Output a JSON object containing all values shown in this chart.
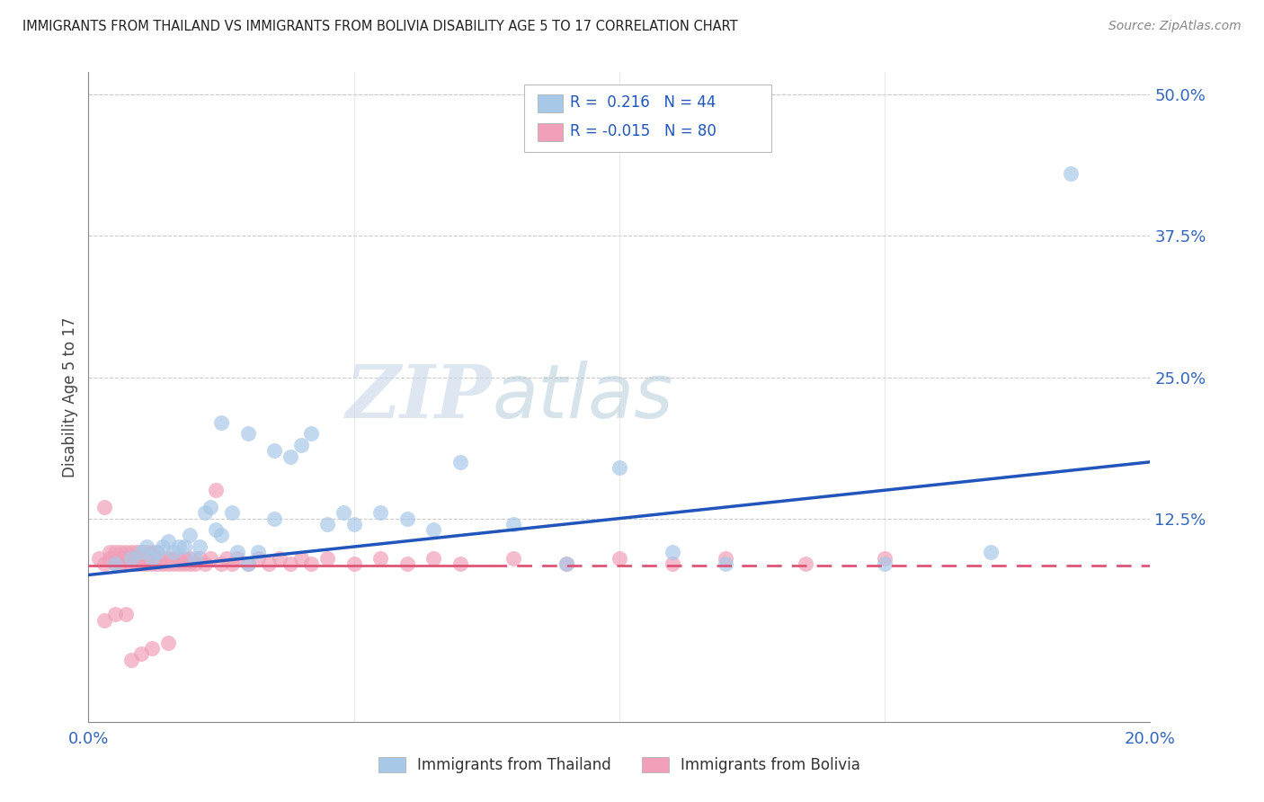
{
  "title": "IMMIGRANTS FROM THAILAND VS IMMIGRANTS FROM BOLIVIA DISABILITY AGE 5 TO 17 CORRELATION CHART",
  "source": "Source: ZipAtlas.com",
  "ylabel": "Disability Age 5 to 17",
  "xlim": [
    0.0,
    0.2
  ],
  "ylim": [
    -0.055,
    0.52
  ],
  "thailand_R": 0.216,
  "thailand_N": 44,
  "bolivia_R": -0.015,
  "bolivia_N": 80,
  "thailand_color": "#a8c8e8",
  "bolivia_color": "#f0a0b8",
  "thailand_line_color": "#2255bb",
  "bolivia_line_color": "#dd5577",
  "background_color": "#ffffff",
  "thailand_x": [
    0.005,
    0.008,
    0.01,
    0.011,
    0.012,
    0.013,
    0.014,
    0.015,
    0.016,
    0.017,
    0.018,
    0.019,
    0.02,
    0.021,
    0.022,
    0.023,
    0.024,
    0.025,
    0.027,
    0.028,
    0.03,
    0.032,
    0.035,
    0.038,
    0.04,
    0.042,
    0.045,
    0.048,
    0.05,
    0.055,
    0.06,
    0.065,
    0.07,
    0.08,
    0.09,
    0.1,
    0.11,
    0.12,
    0.15,
    0.17,
    0.185,
    0.025,
    0.03,
    0.035
  ],
  "thailand_y": [
    0.085,
    0.09,
    0.095,
    0.1,
    0.09,
    0.095,
    0.1,
    0.105,
    0.095,
    0.1,
    0.1,
    0.11,
    0.09,
    0.1,
    0.13,
    0.135,
    0.115,
    0.11,
    0.13,
    0.095,
    0.085,
    0.095,
    0.125,
    0.18,
    0.19,
    0.2,
    0.12,
    0.13,
    0.12,
    0.13,
    0.125,
    0.115,
    0.175,
    0.12,
    0.085,
    0.17,
    0.095,
    0.085,
    0.085,
    0.095,
    0.43,
    0.21,
    0.2,
    0.185
  ],
  "bolivia_x": [
    0.002,
    0.003,
    0.003,
    0.004,
    0.004,
    0.005,
    0.005,
    0.005,
    0.006,
    0.006,
    0.006,
    0.007,
    0.007,
    0.007,
    0.008,
    0.008,
    0.008,
    0.009,
    0.009,
    0.009,
    0.01,
    0.01,
    0.01,
    0.011,
    0.011,
    0.011,
    0.012,
    0.012,
    0.012,
    0.013,
    0.013,
    0.013,
    0.014,
    0.014,
    0.015,
    0.015,
    0.016,
    0.016,
    0.017,
    0.017,
    0.018,
    0.018,
    0.019,
    0.019,
    0.02,
    0.021,
    0.022,
    0.023,
    0.024,
    0.025,
    0.026,
    0.027,
    0.028,
    0.03,
    0.032,
    0.034,
    0.036,
    0.038,
    0.04,
    0.042,
    0.045,
    0.05,
    0.055,
    0.06,
    0.065,
    0.07,
    0.08,
    0.09,
    0.1,
    0.11,
    0.12,
    0.135,
    0.15,
    0.003,
    0.005,
    0.007,
    0.008,
    0.01,
    0.012,
    0.015
  ],
  "bolivia_y": [
    0.09,
    0.085,
    0.135,
    0.09,
    0.095,
    0.085,
    0.09,
    0.095,
    0.085,
    0.09,
    0.095,
    0.085,
    0.09,
    0.095,
    0.085,
    0.09,
    0.095,
    0.085,
    0.09,
    0.095,
    0.085,
    0.09,
    0.095,
    0.085,
    0.09,
    0.095,
    0.085,
    0.09,
    0.095,
    0.085,
    0.09,
    0.095,
    0.085,
    0.09,
    0.085,
    0.09,
    0.085,
    0.09,
    0.085,
    0.09,
    0.085,
    0.09,
    0.085,
    0.09,
    0.085,
    0.09,
    0.085,
    0.09,
    0.15,
    0.085,
    0.09,
    0.085,
    0.09,
    0.085,
    0.09,
    0.085,
    0.09,
    0.085,
    0.09,
    0.085,
    0.09,
    0.085,
    0.09,
    0.085,
    0.09,
    0.085,
    0.09,
    0.085,
    0.09,
    0.085,
    0.09,
    0.085,
    0.09,
    0.035,
    0.04,
    0.04,
    0.0,
    0.005,
    0.01,
    0.015
  ]
}
